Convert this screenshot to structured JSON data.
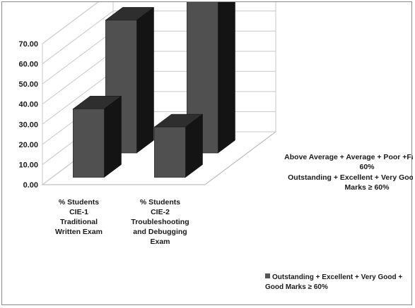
{
  "chart_data": {
    "type": "bar",
    "subtype": "3d-column",
    "categories": [
      [
        "% Students",
        "CIE-1",
        "Traditional",
        "Written Exam"
      ],
      [
        "% Students",
        "CIE-2",
        "Troubleshooting",
        "and Debugging",
        "Exam"
      ]
    ],
    "series": [
      {
        "name": [
          "Outstanding + Excellent + Very Good + Good",
          "Marks ≥ 60%"
        ],
        "values": [
          66.0,
          75.0
        ],
        "color": "#505050"
      },
      {
        "name": [
          "Above Average + Average + Poor +Fail Marks <",
          "60%"
        ],
        "values": [
          34.0,
          25.0
        ],
        "color": "#505050"
      }
    ],
    "y_ticks": [
      "0.00",
      "10.00",
      "20.00",
      "30.00",
      "40.00",
      "50.00",
      "60.00",
      "70.00"
    ],
    "ylim": [
      0,
      70
    ],
    "grid": true,
    "legend": {
      "position": "bottom-right",
      "entries": [
        {
          "series_index": 0,
          "label": "Outstanding + Excellent + Very Good + Good Marks ≥ 60%"
        }
      ]
    }
  }
}
